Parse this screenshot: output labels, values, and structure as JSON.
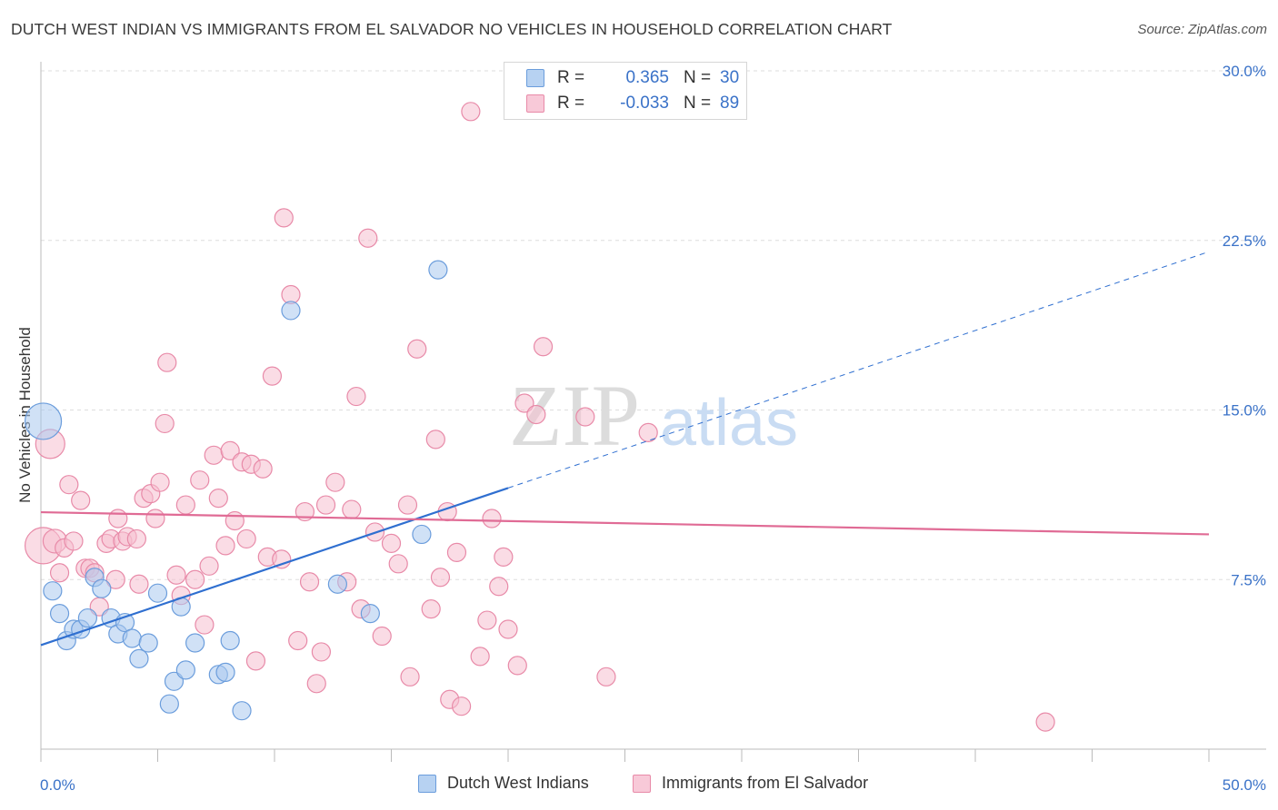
{
  "header": {
    "title": "DUTCH WEST INDIAN VS IMMIGRANTS FROM EL SALVADOR NO VEHICLES IN HOUSEHOLD CORRELATION CHART",
    "source": "Source: ZipAtlas.com"
  },
  "watermark": {
    "zip": "ZIP",
    "atlas": "atlas"
  },
  "legend": {
    "r_label": "R =",
    "n_label": "N =",
    "series1": {
      "r": "0.365",
      "n": "30"
    },
    "series2": {
      "r": "-0.033",
      "n": "89"
    }
  },
  "colors": {
    "blue_fill": "#a9c8ee",
    "blue_stroke": "#6b9ddc",
    "blue_line": "#2f6fd0",
    "pink_fill": "#f5bfd0",
    "pink_stroke": "#e88aa8",
    "pink_line": "#e06b95",
    "tick_label": "#3a72c8",
    "grid": "#dedede"
  },
  "chart_data": {
    "type": "scatter",
    "title": "DUTCH WEST INDIAN VS IMMIGRANTS FROM EL SALVADOR NO VEHICLES IN HOUSEHOLD CORRELATION CHART",
    "xlabel": "",
    "ylabel": "No Vehicles in Household",
    "xlim": [
      0,
      50
    ],
    "ylim": [
      0,
      30
    ],
    "x_tick_labels": [
      "0.0%",
      "50.0%"
    ],
    "y_ticks": [
      7.5,
      15.0,
      22.5,
      30.0
    ],
    "y_tick_labels": [
      "7.5%",
      "15.0%",
      "22.5%",
      "30.0%"
    ],
    "series": [
      {
        "name": "Dutch West Indians",
        "r": 0.365,
        "n": 30,
        "points": [
          [
            0.1,
            14.5,
            2.0
          ],
          [
            0.5,
            7.0,
            1
          ],
          [
            0.8,
            6.0,
            1
          ],
          [
            1.1,
            4.8,
            1
          ],
          [
            1.4,
            5.3,
            1
          ],
          [
            1.7,
            5.3,
            1
          ],
          [
            2.0,
            5.8,
            1
          ],
          [
            2.3,
            7.6,
            1
          ],
          [
            2.6,
            7.1,
            1
          ],
          [
            3.0,
            5.8,
            1
          ],
          [
            3.3,
            5.1,
            1
          ],
          [
            3.6,
            5.6,
            1
          ],
          [
            3.9,
            4.9,
            1
          ],
          [
            4.2,
            4.0,
            1
          ],
          [
            4.6,
            4.7,
            1
          ],
          [
            5.0,
            6.9,
            1
          ],
          [
            5.7,
            3.0,
            1
          ],
          [
            5.5,
            2.0,
            1
          ],
          [
            6.0,
            6.3,
            1
          ],
          [
            6.2,
            3.5,
            1
          ],
          [
            6.6,
            4.7,
            1
          ],
          [
            7.6,
            3.3,
            1
          ],
          [
            7.9,
            3.4,
            1
          ],
          [
            8.1,
            4.8,
            1
          ],
          [
            8.6,
            1.7,
            1
          ],
          [
            10.7,
            19.4,
            1
          ],
          [
            12.7,
            7.3,
            1
          ],
          [
            14.1,
            6.0,
            1
          ],
          [
            16.3,
            9.5,
            1
          ],
          [
            17.0,
            21.2,
            1
          ]
        ],
        "trend": {
          "x0": 0,
          "y0": 4.6,
          "x1": 20,
          "y1": 11.55,
          "dashed_to": [
            50,
            22.0
          ]
        }
      },
      {
        "name": "Immigrants from El Salvador",
        "r": -0.033,
        "n": 89,
        "points": [
          [
            0.1,
            9.0,
            2.0
          ],
          [
            0.4,
            13.5,
            1.6
          ],
          [
            0.6,
            9.2,
            1.3
          ],
          [
            0.8,
            7.8,
            1
          ],
          [
            1.0,
            8.9,
            1
          ],
          [
            1.2,
            11.7,
            1
          ],
          [
            1.4,
            9.2,
            1
          ],
          [
            1.7,
            11.0,
            1
          ],
          [
            1.9,
            8.0,
            1
          ],
          [
            2.1,
            8.0,
            1
          ],
          [
            2.3,
            7.8,
            1
          ],
          [
            2.5,
            6.3,
            1
          ],
          [
            2.8,
            9.1,
            1
          ],
          [
            3.0,
            9.3,
            1
          ],
          [
            3.2,
            7.5,
            1
          ],
          [
            3.3,
            10.2,
            1
          ],
          [
            3.5,
            9.2,
            1
          ],
          [
            3.7,
            9.4,
            1
          ],
          [
            4.1,
            9.3,
            1
          ],
          [
            4.2,
            7.3,
            1
          ],
          [
            4.4,
            11.1,
            1
          ],
          [
            4.7,
            11.3,
            1
          ],
          [
            4.9,
            10.2,
            1
          ],
          [
            5.1,
            11.8,
            1
          ],
          [
            5.3,
            14.4,
            1
          ],
          [
            5.4,
            17.1,
            1
          ],
          [
            5.8,
            7.7,
            1
          ],
          [
            6.0,
            6.8,
            1
          ],
          [
            6.2,
            10.8,
            1
          ],
          [
            6.6,
            7.5,
            1
          ],
          [
            6.8,
            11.9,
            1
          ],
          [
            7.0,
            5.5,
            1
          ],
          [
            7.2,
            8.1,
            1
          ],
          [
            7.4,
            13.0,
            1
          ],
          [
            7.6,
            11.1,
            1
          ],
          [
            7.9,
            9.0,
            1
          ],
          [
            8.1,
            13.2,
            1
          ],
          [
            8.3,
            10.1,
            1
          ],
          [
            8.6,
            12.7,
            1
          ],
          [
            8.8,
            9.3,
            1
          ],
          [
            9.0,
            12.6,
            1
          ],
          [
            9.2,
            3.9,
            1
          ],
          [
            9.5,
            12.4,
            1
          ],
          [
            9.7,
            8.5,
            1
          ],
          [
            9.9,
            16.5,
            1
          ],
          [
            10.3,
            8.4,
            1
          ],
          [
            10.4,
            23.5,
            1
          ],
          [
            10.7,
            20.1,
            1
          ],
          [
            11.0,
            4.8,
            1
          ],
          [
            11.3,
            10.5,
            1
          ],
          [
            11.5,
            7.4,
            1
          ],
          [
            11.8,
            2.9,
            1
          ],
          [
            12.0,
            4.3,
            1
          ],
          [
            12.2,
            10.8,
            1
          ],
          [
            12.6,
            11.8,
            1
          ],
          [
            13.1,
            7.4,
            1
          ],
          [
            13.3,
            10.6,
            1
          ],
          [
            13.5,
            15.6,
            1
          ],
          [
            13.7,
            6.2,
            1
          ],
          [
            14.0,
            22.6,
            1
          ],
          [
            14.3,
            9.6,
            1
          ],
          [
            14.6,
            5.0,
            1
          ],
          [
            15.0,
            9.1,
            1
          ],
          [
            15.3,
            8.2,
            1
          ],
          [
            15.7,
            10.8,
            1
          ],
          [
            15.8,
            3.2,
            1
          ],
          [
            16.1,
            17.7,
            1
          ],
          [
            16.7,
            6.2,
            1
          ],
          [
            16.9,
            13.7,
            1
          ],
          [
            17.1,
            7.6,
            1
          ],
          [
            17.4,
            10.5,
            1
          ],
          [
            17.5,
            2.2,
            1
          ],
          [
            17.8,
            8.7,
            1
          ],
          [
            18.0,
            1.9,
            1
          ],
          [
            18.4,
            28.2,
            1
          ],
          [
            18.8,
            4.1,
            1
          ],
          [
            19.1,
            5.7,
            1
          ],
          [
            19.3,
            10.2,
            1
          ],
          [
            19.6,
            7.2,
            1
          ],
          [
            19.8,
            8.5,
            1
          ],
          [
            20.0,
            5.3,
            1
          ],
          [
            20.4,
            3.7,
            1
          ],
          [
            20.7,
            15.3,
            1
          ],
          [
            21.2,
            14.8,
            1
          ],
          [
            21.5,
            17.8,
            1
          ],
          [
            23.3,
            14.7,
            1
          ],
          [
            24.2,
            3.2,
            1
          ],
          [
            26.0,
            14.0,
            1
          ],
          [
            43.0,
            1.2,
            1
          ]
        ],
        "trend": {
          "x0": 0,
          "y0": 10.48,
          "x1": 50,
          "y1": 9.5
        }
      }
    ]
  },
  "bottom_legend": {
    "s1": "Dutch West Indians",
    "s2": "Immigrants from El Salvador"
  }
}
